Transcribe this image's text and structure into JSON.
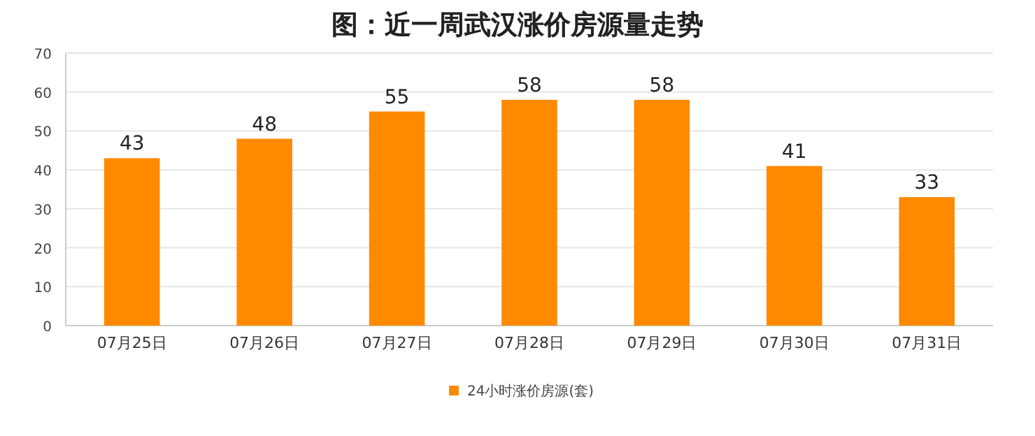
{
  "chart_data": {
    "type": "bar",
    "title": "图：近一周武汉涨价房源量走势",
    "categories": [
      "07月25日",
      "07月26日",
      "07月27日",
      "07月28日",
      "07月29日",
      "07月30日",
      "07月31日"
    ],
    "series": [
      {
        "name": "24小时涨价房源(套)",
        "color": "#ff8a00",
        "values": [
          43,
          48,
          55,
          58,
          58,
          41,
          33
        ]
      }
    ],
    "ylim": [
      0,
      70
    ],
    "yticks": [
      0,
      10,
      20,
      30,
      40,
      50,
      60,
      70
    ],
    "grid": "y",
    "legend": "bottom",
    "data_labels": true
  }
}
